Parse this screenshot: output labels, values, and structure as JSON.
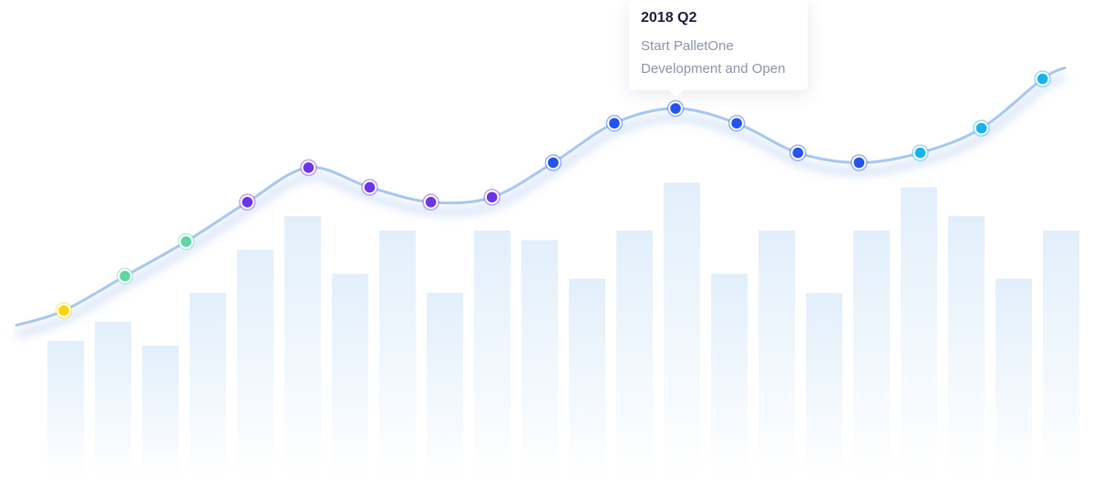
{
  "colors": {
    "line": "#a6c7f4",
    "bar_top": "#e2effb",
    "bar_bottom": "#ffffff"
  },
  "tooltip": {
    "title": "2018 Q2",
    "lines": [
      "Start PalletOne",
      "Development and Open"
    ]
  },
  "chart_data": {
    "type": "bar",
    "title": "",
    "xlabel": "",
    "ylabel": "",
    "bar_values": [
      0.29,
      0.33,
      0.28,
      0.39,
      0.48,
      0.55,
      0.43,
      0.52,
      0.39,
      0.52,
      0.5,
      0.42,
      0.52,
      0.62,
      0.43,
      0.52,
      0.39,
      0.52,
      0.61,
      0.55,
      0.42,
      0.52
    ],
    "milestones": [
      {
        "value": 0.37,
        "color": "#ffd400"
      },
      {
        "value": 0.44,
        "color": "#5fd6a4"
      },
      {
        "value": 0.51,
        "color": "#5fd6a4"
      },
      {
        "value": 0.59,
        "color": "#6a35e8"
      },
      {
        "value": 0.66,
        "color": "#6a35e8"
      },
      {
        "value": 0.62,
        "color": "#6a35e8"
      },
      {
        "value": 0.59,
        "color": "#6a35e8"
      },
      {
        "value": 0.6,
        "color": "#6a35e8"
      },
      {
        "value": 0.67,
        "color": "#2254f0"
      },
      {
        "value": 0.75,
        "color": "#2254f0"
      },
      {
        "value": 0.78,
        "color": "#2254f0"
      },
      {
        "value": 0.75,
        "color": "#2254f0"
      },
      {
        "value": 0.69,
        "color": "#2254f0"
      },
      {
        "value": 0.67,
        "color": "#2254f0"
      },
      {
        "value": 0.69,
        "color": "#16b1f0"
      },
      {
        "value": 0.74,
        "color": "#16b1f0"
      },
      {
        "value": 0.84,
        "color": "#16b1f0"
      }
    ],
    "highlighted_milestone_index": 10
  }
}
